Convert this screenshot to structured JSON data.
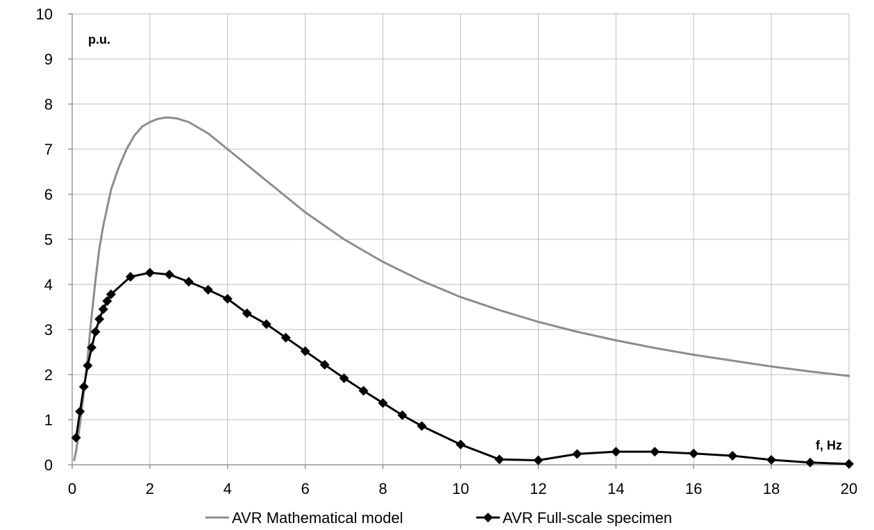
{
  "chart_data": {
    "type": "line",
    "xlabel": "f, Hz",
    "ylabel": "p.u.",
    "xlim": [
      0,
      20
    ],
    "ylim": [
      0,
      10
    ],
    "x_ticks": [
      0,
      2,
      4,
      6,
      8,
      10,
      12,
      14,
      16,
      18,
      20
    ],
    "y_ticks": [
      0,
      1,
      2,
      3,
      4,
      5,
      6,
      7,
      8,
      9,
      10
    ],
    "grid": true,
    "legend_position": "bottom",
    "series": [
      {
        "name": "AVR Mathematical model",
        "color": "#8c8c8c",
        "marker": "none",
        "x": [
          0.05,
          0.1,
          0.2,
          0.3,
          0.4,
          0.5,
          0.6,
          0.7,
          0.8,
          0.9,
          1.0,
          1.2,
          1.4,
          1.6,
          1.8,
          2.0,
          2.2,
          2.4,
          2.5,
          2.7,
          3.0,
          3.5,
          4.0,
          4.5,
          5.0,
          6.0,
          7.0,
          8.0,
          9.0,
          10.0,
          11.0,
          12.0,
          13.0,
          14.0,
          15.0,
          16.0,
          17.0,
          18.0,
          19.0,
          20.0
        ],
        "y": [
          0.1,
          0.3,
          0.9,
          1.6,
          2.4,
          3.3,
          4.1,
          4.8,
          5.3,
          5.7,
          6.1,
          6.6,
          7.0,
          7.3,
          7.5,
          7.6,
          7.67,
          7.7,
          7.7,
          7.68,
          7.6,
          7.35,
          7.0,
          6.65,
          6.3,
          5.6,
          5.0,
          4.5,
          4.08,
          3.72,
          3.43,
          3.17,
          2.95,
          2.76,
          2.59,
          2.44,
          2.31,
          2.18,
          2.07,
          1.97
        ]
      },
      {
        "name": "AVR Full-scale specimen",
        "color": "#000000",
        "marker": "diamond",
        "x": [
          0.1,
          0.2,
          0.3,
          0.4,
          0.5,
          0.6,
          0.7,
          0.8,
          0.9,
          1.0,
          1.5,
          2.0,
          2.5,
          3.0,
          3.5,
          4.0,
          4.5,
          5.0,
          5.5,
          6.0,
          6.5,
          7.0,
          7.5,
          8.0,
          8.5,
          9.0,
          10.0,
          11.0,
          12.0,
          13.0,
          14.0,
          15.0,
          16.0,
          17.0,
          18.0,
          19.0,
          20.0
        ],
        "y": [
          0.6,
          1.18,
          1.73,
          2.2,
          2.6,
          2.95,
          3.23,
          3.45,
          3.63,
          3.78,
          4.17,
          4.26,
          4.22,
          4.06,
          3.88,
          3.68,
          3.36,
          3.12,
          2.82,
          2.52,
          2.22,
          1.92,
          1.64,
          1.37,
          1.1,
          0.86,
          0.45,
          0.12,
          0.1,
          0.24,
          0.29,
          0.29,
          0.25,
          0.2,
          0.11,
          0.05,
          0.02
        ]
      }
    ]
  }
}
